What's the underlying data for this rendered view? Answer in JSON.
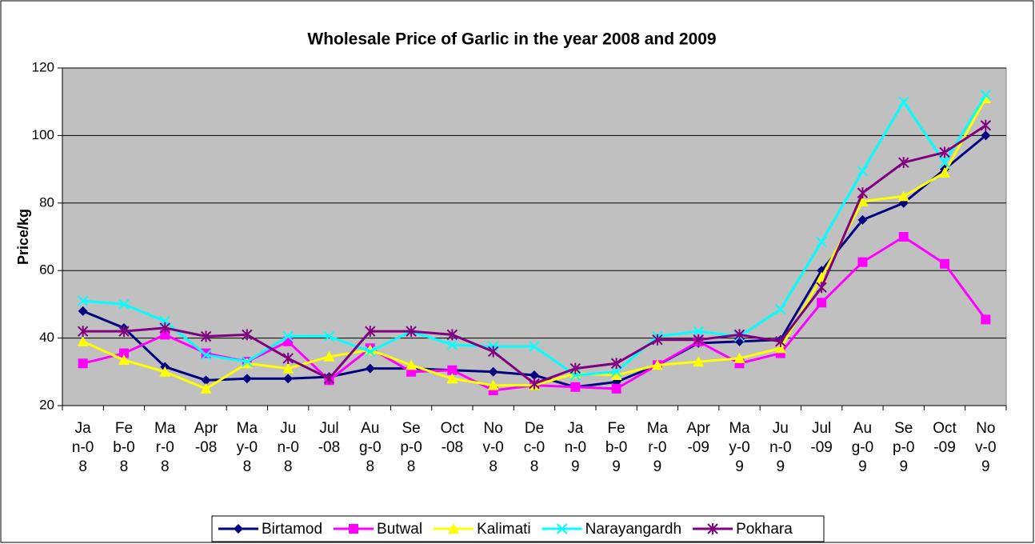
{
  "chart_data": {
    "type": "line",
    "title": "Wholesale Price of Garlic in the year 2008 and 2009",
    "y_label": "Price/kg",
    "categories": [
      "Jan-08",
      "Feb-08",
      "Mar-08",
      "Apr-08",
      "May-08",
      "Jun-08",
      "Jul-08",
      "Aug-08",
      "Sep-08",
      "Oct-08",
      "Nov-08",
      "Dec-08",
      "Jan-09",
      "Feb-09",
      "Mar-09",
      "Apr-09",
      "May-09",
      "Jun-09",
      "Jul-09",
      "Aug-09",
      "Sep-09",
      "Oct-09",
      "Nov-09"
    ],
    "series": [
      {
        "name": "Birtamod",
        "color": "#000080",
        "marker": "diamond",
        "values": [
          48,
          43,
          31.5,
          27.5,
          28,
          28,
          28.5,
          31,
          31,
          30.5,
          30,
          29,
          25.5,
          27,
          32,
          38.5,
          39,
          39.5,
          60,
          75,
          80,
          90,
          100
        ]
      },
      {
        "name": "Butwal",
        "color": "#ff00ff",
        "marker": "square",
        "values": [
          32.5,
          35.5,
          41,
          35.5,
          33,
          39,
          27.5,
          37,
          30,
          30.5,
          24.5,
          26,
          25.5,
          25,
          32,
          39,
          32.5,
          35.5,
          50.5,
          62.5,
          70,
          62,
          45.5
        ]
      },
      {
        "name": "Kalimati",
        "color": "#ffff00",
        "marker": "triangle",
        "values": [
          39,
          33.5,
          30,
          25,
          32.5,
          31,
          34.5,
          36.5,
          32,
          28,
          26,
          26,
          29.5,
          29,
          32,
          33,
          34,
          37,
          58,
          80.5,
          82,
          89,
          111
        ]
      },
      {
        "name": "Narayangardh",
        "color": "#00ffff",
        "marker": "x",
        "values": [
          51,
          50,
          45,
          35,
          33,
          40.5,
          40.5,
          36,
          42,
          38,
          37.5,
          37.5,
          29,
          30,
          40.5,
          42,
          40.5,
          48.5,
          68.5,
          89.5,
          110,
          92,
          112
        ]
      },
      {
        "name": "Pokhara",
        "color": "#800080",
        "marker": "star",
        "values": [
          42,
          42,
          43,
          40.5,
          41,
          34,
          28,
          42,
          42,
          41,
          36,
          26.5,
          31,
          32.5,
          39.5,
          39.5,
          41,
          39,
          55,
          83,
          92,
          95,
          103
        ]
      }
    ],
    "ylim": [
      20,
      120
    ],
    "yticks": [
      20,
      40,
      60,
      80,
      100,
      120
    ],
    "grid": true,
    "legend": "bottom"
  }
}
